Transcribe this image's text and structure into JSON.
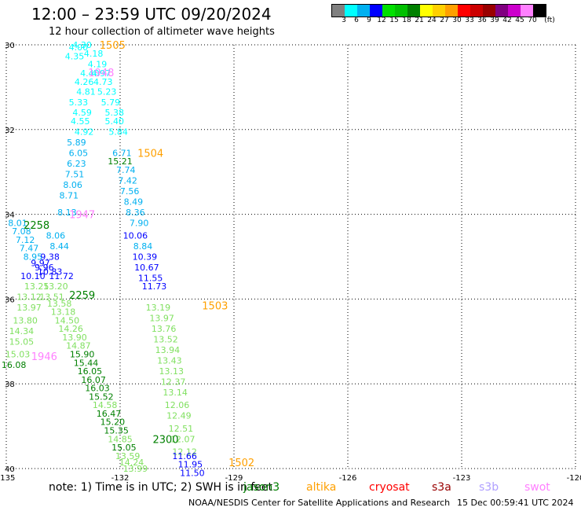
{
  "header": {
    "title": "12:00 – 23:59 UTC 09/20/2024",
    "subtitle": "12 hour collection of altimeter wave heights"
  },
  "colorbar": {
    "colors": [
      "#808080",
      "#00ffff",
      "#00b0f0",
      "#0000ff",
      "#00e000",
      "#00c000",
      "#008000",
      "#ffff00",
      "#ffd000",
      "#ffa000",
      "#ff0000",
      "#cc0000",
      "#990000",
      "#800080",
      "#cc00cc",
      "#ff80ff",
      "#000000"
    ],
    "labels": [
      "3",
      "6",
      "9",
      "12",
      "15",
      "18",
      "21",
      "24",
      "27",
      "30",
      "33",
      "36",
      "39",
      "42",
      "45",
      "70",
      "(ft)"
    ]
  },
  "map": {
    "lat_ticks": [
      "30",
      "32",
      "34",
      "36",
      "38",
      "40"
    ],
    "lon_ticks": [
      "-135",
      "-132",
      "-129",
      "-126",
      "-123",
      "-120"
    ]
  },
  "chart_data": {
    "type": "scatter",
    "title": "12:00 – 23:59 UTC 09/20/2024",
    "subtitle": "12 hour collection of altimeter wave heights",
    "xlim": [
      -135,
      -120
    ],
    "ylim": [
      30,
      40
    ],
    "y_inverted": true,
    "grid": true,
    "time_labels": [
      {
        "text": "1505",
        "lon": -132.2,
        "lat": 30.0,
        "color": "#ffa000"
      },
      {
        "text": "1948",
        "lon": -132.5,
        "lat": 30.65,
        "color": "#ff80ff"
      },
      {
        "text": "1504",
        "lon": -131.2,
        "lat": 32.55,
        "color": "#ffa000"
      },
      {
        "text": "1947",
        "lon": -133.0,
        "lat": 34.0,
        "color": "#ff80ff"
      },
      {
        "text": "2258",
        "lon": -134.2,
        "lat": 34.25,
        "color": "#008000"
      },
      {
        "text": "2259",
        "lon": -133.0,
        "lat": 35.9,
        "color": "#008000"
      },
      {
        "text": "1503",
        "lon": -129.5,
        "lat": 36.15,
        "color": "#ffa000"
      },
      {
        "text": "1946",
        "lon": -134.0,
        "lat": 37.35,
        "color": "#ff80ff"
      },
      {
        "text": "2300",
        "lon": -130.8,
        "lat": 39.3,
        "color": "#008000"
      },
      {
        "text": "1502",
        "lon": -128.8,
        "lat": 39.85,
        "color": "#ffa000"
      }
    ],
    "points": [
      {
        "v": "4.30",
        "lon": -133.0,
        "lat": 30.0,
        "color": "#00ffff"
      },
      {
        "v": "4.00",
        "lon": -133.1,
        "lat": 30.06,
        "color": "#00ffff"
      },
      {
        "v": "4.35",
        "lon": -133.2,
        "lat": 30.27,
        "color": "#00ffff"
      },
      {
        "v": "4.18",
        "lon": -132.7,
        "lat": 30.2,
        "color": "#00ffff"
      },
      {
        "v": "4.19",
        "lon": -132.6,
        "lat": 30.45,
        "color": "#00ffff"
      },
      {
        "v": "4.40",
        "lon": -132.8,
        "lat": 30.67,
        "color": "#00ffff"
      },
      {
        "v": "4.97",
        "lon": -132.5,
        "lat": 30.67,
        "color": "#00ffff"
      },
      {
        "v": "4.26",
        "lon": -132.95,
        "lat": 30.87,
        "color": "#00ffff"
      },
      {
        "v": "4.73",
        "lon": -132.45,
        "lat": 30.87,
        "color": "#00ffff"
      },
      {
        "v": "4.81",
        "lon": -132.9,
        "lat": 31.1,
        "color": "#00ffff"
      },
      {
        "v": "5.23",
        "lon": -132.35,
        "lat": 31.1,
        "color": "#00ffff"
      },
      {
        "v": "5.33",
        "lon": -133.1,
        "lat": 31.35,
        "color": "#00ffff"
      },
      {
        "v": "5.79",
        "lon": -132.25,
        "lat": 31.35,
        "color": "#00ffff"
      },
      {
        "v": "4.59",
        "lon": -133.0,
        "lat": 31.6,
        "color": "#00ffff"
      },
      {
        "v": "5.38",
        "lon": -132.15,
        "lat": 31.6,
        "color": "#00ffff"
      },
      {
        "v": "4.55",
        "lon": -133.05,
        "lat": 31.8,
        "color": "#00ffff"
      },
      {
        "v": "5.40",
        "lon": -132.15,
        "lat": 31.8,
        "color": "#00ffff"
      },
      {
        "v": "4.92",
        "lon": -132.95,
        "lat": 32.05,
        "color": "#00ffff"
      },
      {
        "v": "5.84",
        "lon": -132.05,
        "lat": 32.05,
        "color": "#00ffff"
      },
      {
        "v": "5.89",
        "lon": -133.15,
        "lat": 32.3,
        "color": "#00b0f0"
      },
      {
        "v": "6.71",
        "lon": -131.95,
        "lat": 32.55,
        "color": "#00b0f0"
      },
      {
        "v": "6.05",
        "lon": -133.1,
        "lat": 32.55,
        "color": "#00b0f0"
      },
      {
        "v": "15.21",
        "lon": -132.0,
        "lat": 32.75,
        "color": "#008000"
      },
      {
        "v": "6.23",
        "lon": -133.15,
        "lat": 32.8,
        "color": "#00b0f0"
      },
      {
        "v": "7.74",
        "lon": -131.85,
        "lat": 32.95,
        "color": "#00b0f0"
      },
      {
        "v": "7.51",
        "lon": -133.2,
        "lat": 33.05,
        "color": "#00b0f0"
      },
      {
        "v": "7.42",
        "lon": -131.8,
        "lat": 33.2,
        "color": "#00b0f0"
      },
      {
        "v": "8.06",
        "lon": -133.25,
        "lat": 33.3,
        "color": "#00b0f0"
      },
      {
        "v": "7.56",
        "lon": -131.75,
        "lat": 33.45,
        "color": "#00b0f0"
      },
      {
        "v": "8.71",
        "lon": -133.35,
        "lat": 33.55,
        "color": "#00b0f0"
      },
      {
        "v": "8.49",
        "lon": -131.65,
        "lat": 33.7,
        "color": "#00b0f0"
      },
      {
        "v": "8.13",
        "lon": -133.4,
        "lat": 33.95,
        "color": "#00b0f0"
      },
      {
        "v": "8.36",
        "lon": -131.6,
        "lat": 33.95,
        "color": "#00b0f0"
      },
      {
        "v": "8.01",
        "lon": -134.7,
        "lat": 34.2,
        "color": "#00b0f0"
      },
      {
        "v": "7.90",
        "lon": -131.5,
        "lat": 34.2,
        "color": "#00b0f0"
      },
      {
        "v": "7.08",
        "lon": -134.6,
        "lat": 34.4,
        "color": "#00b0f0"
      },
      {
        "v": "8.06",
        "lon": -133.7,
        "lat": 34.5,
        "color": "#00b0f0"
      },
      {
        "v": "10.06",
        "lon": -131.6,
        "lat": 34.5,
        "color": "#0000ff"
      },
      {
        "v": "7.12",
        "lon": -134.5,
        "lat": 34.6,
        "color": "#00b0f0"
      },
      {
        "v": "8.44",
        "lon": -133.6,
        "lat": 34.75,
        "color": "#00b0f0"
      },
      {
        "v": "8.84",
        "lon": -131.4,
        "lat": 34.75,
        "color": "#00b0f0"
      },
      {
        "v": "7.47",
        "lon": -134.4,
        "lat": 34.8,
        "color": "#00b0f0"
      },
      {
        "v": "8.95",
        "lon": -134.3,
        "lat": 35.0,
        "color": "#00b0f0"
      },
      {
        "v": "9.38",
        "lon": -133.85,
        "lat": 35.0,
        "color": "#0000ff"
      },
      {
        "v": "10.39",
        "lon": -131.35,
        "lat": 35.0,
        "color": "#0000ff"
      },
      {
        "v": "9.97",
        "lon": -134.1,
        "lat": 35.15,
        "color": "#0000ff"
      },
      {
        "v": "9.96",
        "lon": -134.0,
        "lat": 35.25,
        "color": "#0000ff"
      },
      {
        "v": "10.67",
        "lon": -131.3,
        "lat": 35.25,
        "color": "#0000ff"
      },
      {
        "v": "10.83",
        "lon": -133.85,
        "lat": 35.35,
        "color": "#0000ff"
      },
      {
        "v": "10.10",
        "lon": -134.3,
        "lat": 35.45,
        "color": "#0000ff"
      },
      {
        "v": "11.72",
        "lon": -133.55,
        "lat": 35.45,
        "color": "#0000ff"
      },
      {
        "v": "11.55",
        "lon": -131.2,
        "lat": 35.5,
        "color": "#0000ff"
      },
      {
        "v": "13.25",
        "lon": -134.2,
        "lat": 35.7,
        "color": "#80e060"
      },
      {
        "v": "13.20",
        "lon": -133.7,
        "lat": 35.7,
        "color": "#80e060"
      },
      {
        "v": "11.73",
        "lon": -131.1,
        "lat": 35.7,
        "color": "#0000ff"
      },
      {
        "v": "13.12",
        "lon": -134.4,
        "lat": 35.95,
        "color": "#80e060"
      },
      {
        "v": "13.51",
        "lon": -133.8,
        "lat": 35.95,
        "color": "#80e060"
      },
      {
        "v": "13.97",
        "lon": -134.4,
        "lat": 36.2,
        "color": "#80e060"
      },
      {
        "v": "13.58",
        "lon": -133.6,
        "lat": 36.1,
        "color": "#80e060"
      },
      {
        "v": "13.19",
        "lon": -131.0,
        "lat": 36.2,
        "color": "#80e060"
      },
      {
        "v": "13.18",
        "lon": -133.5,
        "lat": 36.3,
        "color": "#80e060"
      },
      {
        "v": "13.80",
        "lon": -134.5,
        "lat": 36.5,
        "color": "#80e060"
      },
      {
        "v": "14.50",
        "lon": -133.4,
        "lat": 36.5,
        "color": "#80e060"
      },
      {
        "v": "13.97",
        "lon": -130.9,
        "lat": 36.45,
        "color": "#80e060"
      },
      {
        "v": "14.26",
        "lon": -133.3,
        "lat": 36.7,
        "color": "#80e060"
      },
      {
        "v": "13.76",
        "lon": -130.85,
        "lat": 36.7,
        "color": "#80e060"
      },
      {
        "v": "14.34",
        "lon": -134.6,
        "lat": 36.75,
        "color": "#80e060"
      },
      {
        "v": "13.90",
        "lon": -133.2,
        "lat": 36.9,
        "color": "#80e060"
      },
      {
        "v": "13.52",
        "lon": -130.8,
        "lat": 36.95,
        "color": "#80e060"
      },
      {
        "v": "15.05",
        "lon": -134.6,
        "lat": 37.0,
        "color": "#80e060"
      },
      {
        "v": "14.87",
        "lon": -133.1,
        "lat": 37.1,
        "color": "#80e060"
      },
      {
        "v": "13.94",
        "lon": -130.75,
        "lat": 37.2,
        "color": "#80e060"
      },
      {
        "v": "15.03",
        "lon": -134.7,
        "lat": 37.3,
        "color": "#80e060"
      },
      {
        "v": "15.90",
        "lon": -133.0,
        "lat": 37.3,
        "color": "#008000"
      },
      {
        "v": "15.44",
        "lon": -132.9,
        "lat": 37.5,
        "color": "#008000"
      },
      {
        "v": "13.43",
        "lon": -130.7,
        "lat": 37.45,
        "color": "#80e060"
      },
      {
        "v": "16.08",
        "lon": -134.8,
        "lat": 37.55,
        "color": "#008000"
      },
      {
        "v": "16.05",
        "lon": -132.8,
        "lat": 37.7,
        "color": "#008000"
      },
      {
        "v": "13.13",
        "lon": -130.65,
        "lat": 37.7,
        "color": "#80e060"
      },
      {
        "v": "16.07",
        "lon": -132.7,
        "lat": 37.9,
        "color": "#008000"
      },
      {
        "v": "12.37",
        "lon": -130.6,
        "lat": 37.95,
        "color": "#80e060"
      },
      {
        "v": "16.03",
        "lon": -132.6,
        "lat": 38.1,
        "color": "#008000"
      },
      {
        "v": "15.52",
        "lon": -132.5,
        "lat": 38.3,
        "color": "#008000"
      },
      {
        "v": "13.14",
        "lon": -130.55,
        "lat": 38.2,
        "color": "#80e060"
      },
      {
        "v": "14.58",
        "lon": -132.4,
        "lat": 38.5,
        "color": "#80e060"
      },
      {
        "v": "12.06",
        "lon": -130.5,
        "lat": 38.5,
        "color": "#80e060"
      },
      {
        "v": "16.47",
        "lon": -132.3,
        "lat": 38.7,
        "color": "#008000"
      },
      {
        "v": "12.49",
        "lon": -130.45,
        "lat": 38.75,
        "color": "#80e060"
      },
      {
        "v": "15.20",
        "lon": -132.2,
        "lat": 38.9,
        "color": "#008000"
      },
      {
        "v": "15.35",
        "lon": -132.1,
        "lat": 39.1,
        "color": "#008000"
      },
      {
        "v": "12.51",
        "lon": -130.4,
        "lat": 39.05,
        "color": "#80e060"
      },
      {
        "v": "14.85",
        "lon": -132.0,
        "lat": 39.3,
        "color": "#80e060"
      },
      {
        "v": "12.07",
        "lon": -130.35,
        "lat": 39.3,
        "color": "#80e060"
      },
      {
        "v": "15.05",
        "lon": -131.9,
        "lat": 39.5,
        "color": "#008000"
      },
      {
        "v": "12.12",
        "lon": -130.3,
        "lat": 39.6,
        "color": "#80e060"
      },
      {
        "v": "13.59",
        "lon": -131.8,
        "lat": 39.7,
        "color": "#80e060"
      },
      {
        "v": "11.66",
        "lon": -130.3,
        "lat": 39.7,
        "color": "#0000ff"
      },
      {
        "v": "14.24",
        "lon": -131.7,
        "lat": 39.85,
        "color": "#80e060"
      },
      {
        "v": "11.95",
        "lon": -130.15,
        "lat": 39.9,
        "color": "#0000ff"
      },
      {
        "v": "13.99",
        "lon": -131.6,
        "lat": 40.0,
        "color": "#80e060"
      },
      {
        "v": "11.50",
        "lon": -130.1,
        "lat": 40.1,
        "color": "#0000ff"
      }
    ]
  },
  "footer": {
    "note": "note: 1) Time is in UTC; 2) SWH is in feet",
    "satellites": [
      {
        "name": "jason3",
        "color": "#008000"
      },
      {
        "name": "altika",
        "color": "#ffa000"
      },
      {
        "name": "cryosat",
        "color": "#ff0000"
      },
      {
        "name": "s3a",
        "color": "#990000"
      },
      {
        "name": "s3b",
        "color": "#b0a0ff"
      },
      {
        "name": "swot",
        "color": "#ff80ff"
      }
    ],
    "credit": "NOAA/NESDIS Center for Satellite Applications and Research",
    "timestamp": "15 Dec 00:59:41 UTC 2024"
  }
}
